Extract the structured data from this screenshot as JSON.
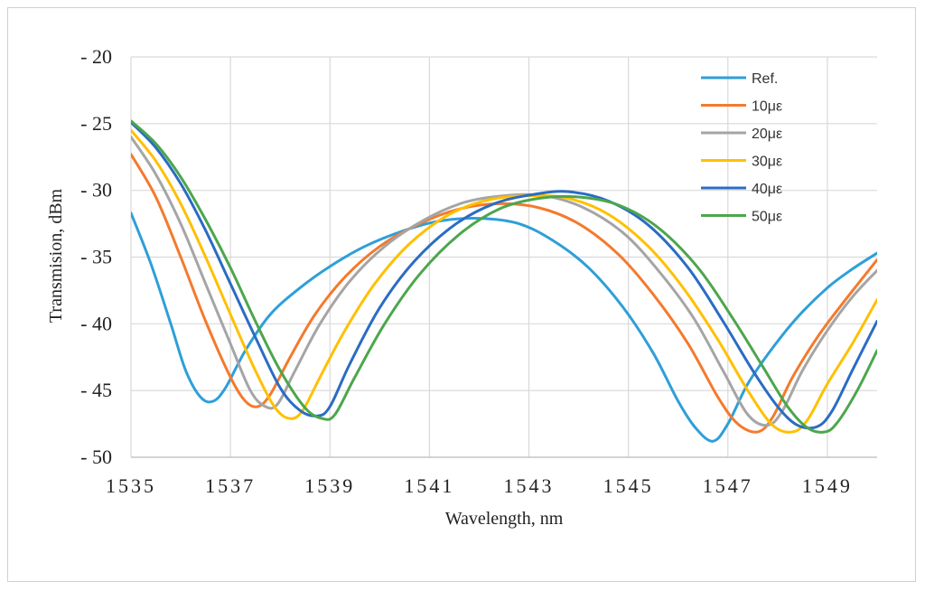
{
  "chart_data": {
    "type": "line",
    "xlabel": "Wavelength, nm",
    "ylabel": "Transmision, dBm",
    "xlim": [
      1535,
      1550
    ],
    "ylim": [
      -50,
      -20
    ],
    "x_ticks": [
      1535,
      1537,
      1539,
      1541,
      1543,
      1545,
      1547,
      1549
    ],
    "y_ticks": [
      -20,
      -25,
      -30,
      -35,
      -40,
      -45,
      -50
    ],
    "grid": true,
    "legend_position": "top-right",
    "series": [
      {
        "name": "Ref.",
        "color": "#2e9fd8",
        "x": [
          1535,
          1535.4,
          1535.8,
          1536.1,
          1536.4,
          1536.65,
          1536.9,
          1537.3,
          1537.8,
          1538.4,
          1539,
          1539.7,
          1540.5,
          1541.2,
          1542,
          1542.8,
          1543.5,
          1544.2,
          1544.9,
          1545.5,
          1546.0,
          1546.35,
          1546.7,
          1547.0,
          1547.4,
          1547.9,
          1548.4,
          1549,
          1549.5,
          1550
        ],
        "y": [
          -31.7,
          -35.5,
          -40,
          -43.5,
          -45.5,
          -45.8,
          -44.8,
          -42,
          -39.3,
          -37.3,
          -35.7,
          -34.2,
          -33,
          -32.3,
          -32.1,
          -32.5,
          -33.8,
          -35.8,
          -38.8,
          -42.2,
          -45.8,
          -47.8,
          -48.8,
          -47.5,
          -44.5,
          -41.8,
          -39.5,
          -37.3,
          -35.9,
          -34.7
        ]
      },
      {
        "name": "10με",
        "color": "#f47a2d",
        "x": [
          1535,
          1535.5,
          1536,
          1536.5,
          1537,
          1537.3,
          1537.55,
          1537.8,
          1538.2,
          1538.7,
          1539.3,
          1540,
          1540.8,
          1541.6,
          1542.4,
          1543.2,
          1544,
          1544.8,
          1545.5,
          1546.2,
          1546.8,
          1547.2,
          1547.6,
          1547.9,
          1548.3,
          1548.8,
          1549.3,
          1550
        ],
        "y": [
          -27.3,
          -30.5,
          -35,
          -39.8,
          -44,
          -45.8,
          -46.2,
          -45.3,
          -42.5,
          -39.3,
          -36.5,
          -34.2,
          -32.5,
          -31.4,
          -31,
          -31.3,
          -32.5,
          -34.8,
          -37.8,
          -41.5,
          -45.5,
          -47.5,
          -48.1,
          -47,
          -44,
          -41,
          -38.5,
          -35.2
        ]
      },
      {
        "name": "20με",
        "color": "#a5a5a5",
        "x": [
          1535,
          1535.5,
          1536,
          1536.5,
          1537,
          1537.4,
          1537.7,
          1537.95,
          1538.3,
          1538.8,
          1539.4,
          1540.1,
          1540.9,
          1541.7,
          1542.5,
          1543.3,
          1544.1,
          1544.9,
          1545.6,
          1546.3,
          1546.9,
          1547.4,
          1547.8,
          1548.1,
          1548.5,
          1549,
          1549.5,
          1550
        ],
        "y": [
          -26,
          -28.8,
          -32.5,
          -37,
          -41.5,
          -45,
          -46.2,
          -46,
          -43.5,
          -40,
          -36.8,
          -34.2,
          -32.2,
          -30.9,
          -30.4,
          -30.4,
          -31.3,
          -33.2,
          -36,
          -39.5,
          -43.5,
          -46.8,
          -47.6,
          -46.5,
          -43.5,
          -40.5,
          -38,
          -36
        ]
      },
      {
        "name": "30με",
        "color": "#ffc000",
        "x": [
          1535,
          1535.5,
          1536,
          1536.5,
          1537,
          1537.5,
          1537.9,
          1538.2,
          1538.45,
          1538.8,
          1539.3,
          1539.9,
          1540.6,
          1541.4,
          1542.2,
          1543,
          1543.8,
          1544.6,
          1545.4,
          1546.1,
          1546.8,
          1547.4,
          1547.9,
          1548.3,
          1548.6,
          1549,
          1549.5,
          1550
        ],
        "y": [
          -25.5,
          -27.8,
          -31,
          -35,
          -39.3,
          -43.5,
          -46.3,
          -47.1,
          -46.5,
          -44,
          -40.5,
          -37,
          -34,
          -31.8,
          -30.7,
          -30.4,
          -30.6,
          -31.8,
          -34.2,
          -37.3,
          -41.2,
          -45,
          -47.6,
          -48.1,
          -47.2,
          -44.5,
          -41.5,
          -38.2
        ]
      },
      {
        "name": "40με",
        "color": "#2b6cc4",
        "x": [
          1535,
          1535.5,
          1536,
          1536.5,
          1537,
          1537.5,
          1538,
          1538.4,
          1538.75,
          1539,
          1539.4,
          1540,
          1540.7,
          1541.5,
          1542.3,
          1543.1,
          1543.8,
          1544.6,
          1545.4,
          1546.2,
          1546.9,
          1547.5,
          1548,
          1548.4,
          1548.8,
          1549.1,
          1549.5,
          1550
        ],
        "y": [
          -24.9,
          -26.8,
          -29.5,
          -33,
          -37,
          -41,
          -44.8,
          -46.5,
          -46.9,
          -46.2,
          -43,
          -38.8,
          -35.3,
          -32.6,
          -31,
          -30.3,
          -30.1,
          -30.8,
          -32.6,
          -35.8,
          -39.8,
          -43.5,
          -46.2,
          -47.6,
          -47.7,
          -46.5,
          -43.5,
          -39.8
        ]
      },
      {
        "name": "50με",
        "color": "#4ca64c",
        "x": [
          1535,
          1535.5,
          1536,
          1536.5,
          1537,
          1537.5,
          1538,
          1538.5,
          1538.85,
          1539.1,
          1539.5,
          1540.1,
          1540.8,
          1541.6,
          1542.4,
          1543.2,
          1544,
          1544.8,
          1545.6,
          1546.4,
          1547.1,
          1547.7,
          1548.2,
          1548.6,
          1548.95,
          1549.2,
          1549.6,
          1550
        ],
        "y": [
          -24.8,
          -26.5,
          -29,
          -32.2,
          -35.8,
          -39.8,
          -43.5,
          -46.3,
          -47.1,
          -46.8,
          -44,
          -40,
          -36.3,
          -33.3,
          -31.4,
          -30.6,
          -30.5,
          -31.1,
          -32.8,
          -35.8,
          -39.6,
          -43.2,
          -46.2,
          -47.8,
          -48.1,
          -47.4,
          -45,
          -42
        ]
      }
    ]
  }
}
